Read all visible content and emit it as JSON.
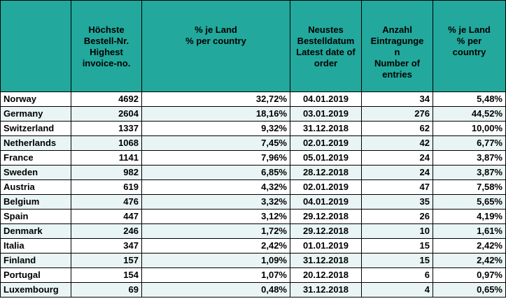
{
  "headers": [
    "",
    "Höchste\nBestell-Nr.\nHighest\ninvoice-no.",
    "% je Land\n% per country",
    "Neustes\nBestelldatum\nLatest date of\norder",
    "Anzahl\nEintragunge\nn\nNumber of\nentries",
    "% je Land\n% per\ncountry"
  ],
  "rows": [
    [
      "Norway",
      "4692",
      "32,72%",
      "04.01.2019",
      "34",
      "5,48%"
    ],
    [
      "Germany",
      "2604",
      "18,16%",
      "03.01.2019",
      "276",
      "44,52%"
    ],
    [
      "Switzerland",
      "1337",
      "9,32%",
      "31.12.2018",
      "62",
      "10,00%"
    ],
    [
      "Netherlands",
      "1068",
      "7,45%",
      "02.01.2019",
      "42",
      "6,77%"
    ],
    [
      "France",
      "1141",
      "7,96%",
      "05.01.2019",
      "24",
      "3,87%"
    ],
    [
      "Sweden",
      "982",
      "6,85%",
      "28.12.2018",
      "24",
      "3,87%"
    ],
    [
      "Austria",
      "619",
      "4,32%",
      "02.01.2019",
      "47",
      "7,58%"
    ],
    [
      "Belgium",
      "476",
      "3,32%",
      "04.01.2019",
      "35",
      "5,65%"
    ],
    [
      "Spain",
      "447",
      "3,12%",
      "29.12.2018",
      "26",
      "4,19%"
    ],
    [
      "Denmark",
      "246",
      "1,72%",
      "29.12.2018",
      "10",
      "1,61%"
    ],
    [
      "Italia",
      "347",
      "2,42%",
      "01.01.2019",
      "15",
      "2,42%"
    ],
    [
      "Finland",
      "157",
      "1,09%",
      "31.12.2018",
      "15",
      "2,42%"
    ],
    [
      "Portugal",
      "154",
      "1,07%",
      "20.12.2018",
      "6",
      "0,97%"
    ],
    [
      "Luxembourg",
      "69",
      "0,48%",
      "31.12.2018",
      "4",
      "0,65%"
    ]
  ],
  "colors": {
    "header_bg": "#22a89c",
    "row_alt_bg": "#e9f5f4",
    "border": "#000000"
  }
}
